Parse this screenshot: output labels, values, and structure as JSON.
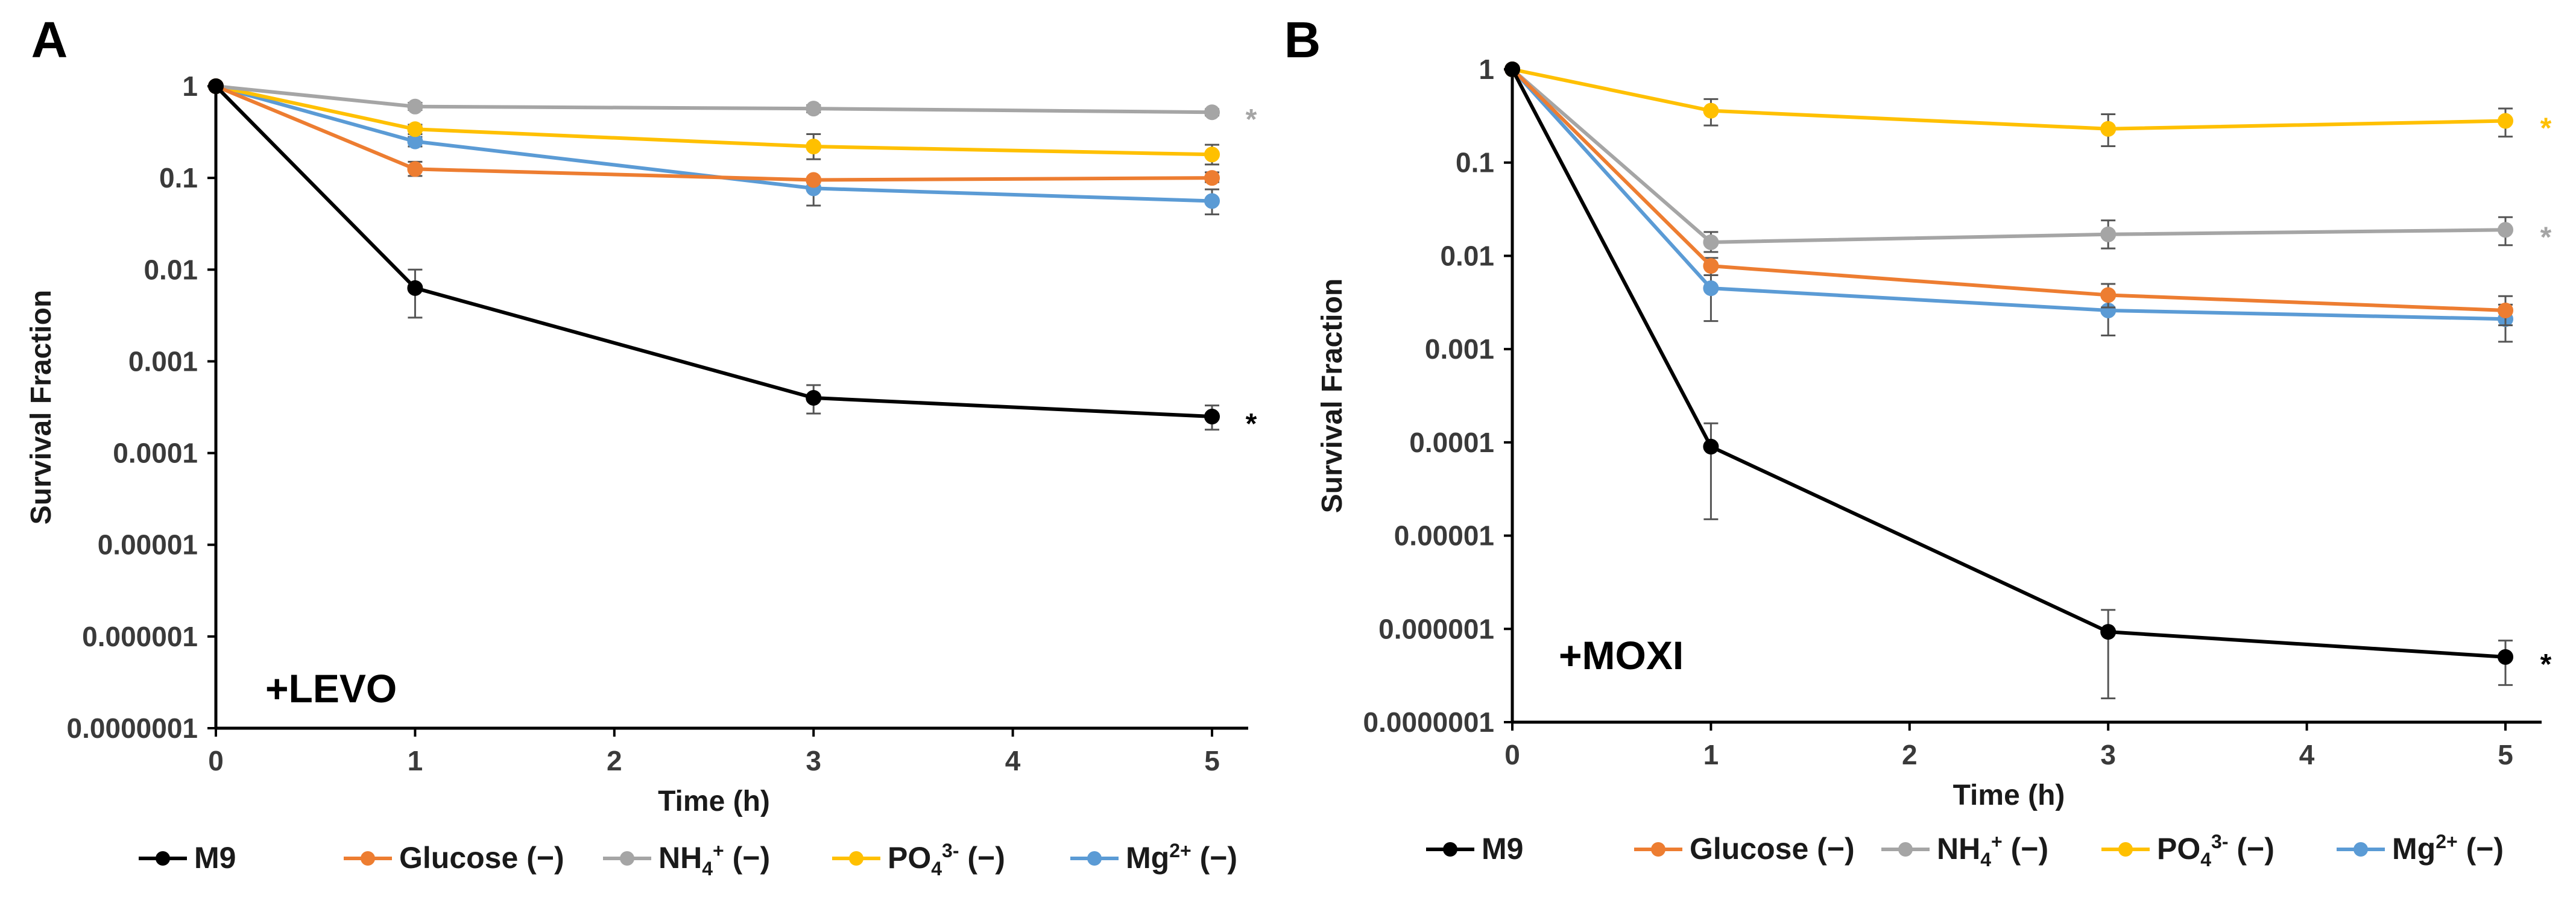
{
  "legend": [
    {
      "name": "M9",
      "color": "#000000"
    },
    {
      "name": "Glucose (−)",
      "color": "#ED7D31"
    },
    {
      "name": "NH4+ (−)",
      "base": "NH",
      "sub": "4",
      "sup": "+",
      "suffix": " (−)",
      "color": "#A5A5A5"
    },
    {
      "name": "PO43- (−)",
      "base": "PO",
      "sub": "4",
      "sup": "3-",
      "suffix": " (−)",
      "color": "#FFC000"
    },
    {
      "name": "Mg2+ (−)",
      "base": "Mg",
      "sup": "2+",
      "suffix": " (−)",
      "color": "#5B9BD5"
    }
  ],
  "chart_data": [
    {
      "panel": "A",
      "type": "line",
      "annotation": "+LEVO",
      "xlabel": "Time (h)",
      "ylabel": "Survival Fraction",
      "xlim": [
        0,
        5
      ],
      "x_ticks": [
        "0",
        "1",
        "2",
        "3",
        "4",
        "5"
      ],
      "y_scale": "log",
      "ylim": [
        1e-07,
        1
      ],
      "y_ticks": [
        "1",
        "0.1",
        "0.01",
        "0.001",
        "0.0001",
        "0.00001",
        "0.000001",
        "0.0000001"
      ],
      "x": [
        0,
        1,
        3,
        5
      ],
      "series": [
        {
          "name": "M9",
          "color": "#000000",
          "values": [
            1,
            0.0063,
            0.0004,
            0.00025
          ],
          "err_low": [
            1,
            0.003,
            0.00027,
            0.00018
          ],
          "err_high": [
            1,
            0.01,
            0.00055,
            0.00033
          ],
          "significant": true
        },
        {
          "name": "Glucose (−)",
          "color": "#ED7D31",
          "values": [
            1,
            0.125,
            0.095,
            0.1
          ],
          "err_low": [
            1,
            0.105,
            0.09,
            0.09
          ],
          "err_high": [
            1,
            0.15,
            0.1,
            0.115
          ],
          "significant": false
        },
        {
          "name": "NH4+ (−)",
          "color": "#A5A5A5",
          "values": [
            1,
            0.6,
            0.57,
            0.52
          ],
          "err_low": [
            1,
            0.55,
            0.52,
            0.48
          ],
          "err_high": [
            1,
            0.66,
            0.62,
            0.56
          ],
          "significant": true
        },
        {
          "name": "PO43- (−)",
          "color": "#FFC000",
          "values": [
            1,
            0.34,
            0.22,
            0.18
          ],
          "err_low": [
            1,
            0.3,
            0.16,
            0.14
          ],
          "err_high": [
            1,
            0.38,
            0.3,
            0.23
          ],
          "significant": false
        },
        {
          "name": "Mg2+ (−)",
          "color": "#5B9BD5",
          "values": [
            1,
            0.25,
            0.077,
            0.056
          ],
          "err_low": [
            1,
            0.22,
            0.05,
            0.04
          ],
          "err_high": [
            1,
            0.28,
            0.09,
            0.075
          ],
          "significant": false
        }
      ]
    },
    {
      "panel": "B",
      "type": "line",
      "annotation": "+MOXI",
      "xlabel": "Time (h)",
      "ylabel": "Survival Fraction",
      "xlim": [
        0,
        5
      ],
      "x_ticks": [
        "0",
        "1",
        "2",
        "3",
        "4",
        "5"
      ],
      "y_scale": "log",
      "ylim": [
        1e-07,
        1
      ],
      "y_ticks": [
        "1",
        "0.1",
        "0.01",
        "0.001",
        "0.0001",
        "0.00001",
        "0.000001",
        "0.0000001"
      ],
      "x": [
        0,
        1,
        3,
        5
      ],
      "series": [
        {
          "name": "M9",
          "color": "#000000",
          "values": [
            1,
            9e-05,
            9.3e-07,
            5e-07
          ],
          "err_low": [
            1,
            1.5e-05,
            1.8e-07,
            2.5e-07
          ],
          "err_high": [
            1,
            0.00016,
            1.6e-06,
            7.5e-07
          ],
          "significant": true
        },
        {
          "name": "Glucose (−)",
          "color": "#ED7D31",
          "values": [
            1,
            0.0078,
            0.0038,
            0.0026
          ],
          "err_low": [
            1,
            0.0062,
            0.0028,
            0.0018
          ],
          "err_high": [
            1,
            0.0095,
            0.005,
            0.0037
          ],
          "significant": false
        },
        {
          "name": "NH4+ (−)",
          "color": "#A5A5A5",
          "values": [
            1,
            0.014,
            0.017,
            0.019
          ],
          "err_low": [
            1,
            0.011,
            0.012,
            0.013
          ],
          "err_high": [
            1,
            0.018,
            0.024,
            0.026
          ],
          "significant": true
        },
        {
          "name": "PO43- (−)",
          "color": "#FFC000",
          "values": [
            1,
            0.36,
            0.23,
            0.28
          ],
          "err_low": [
            1,
            0.25,
            0.15,
            0.19
          ],
          "err_high": [
            1,
            0.48,
            0.33,
            0.38
          ],
          "significant": true
        },
        {
          "name": "Mg2+ (−)",
          "color": "#5B9BD5",
          "values": [
            1,
            0.0045,
            0.0026,
            0.0021
          ],
          "err_low": [
            1,
            0.002,
            0.0014,
            0.0012
          ],
          "err_high": [
            1,
            0.0075,
            0.0038,
            0.003
          ],
          "significant": false
        }
      ]
    }
  ]
}
